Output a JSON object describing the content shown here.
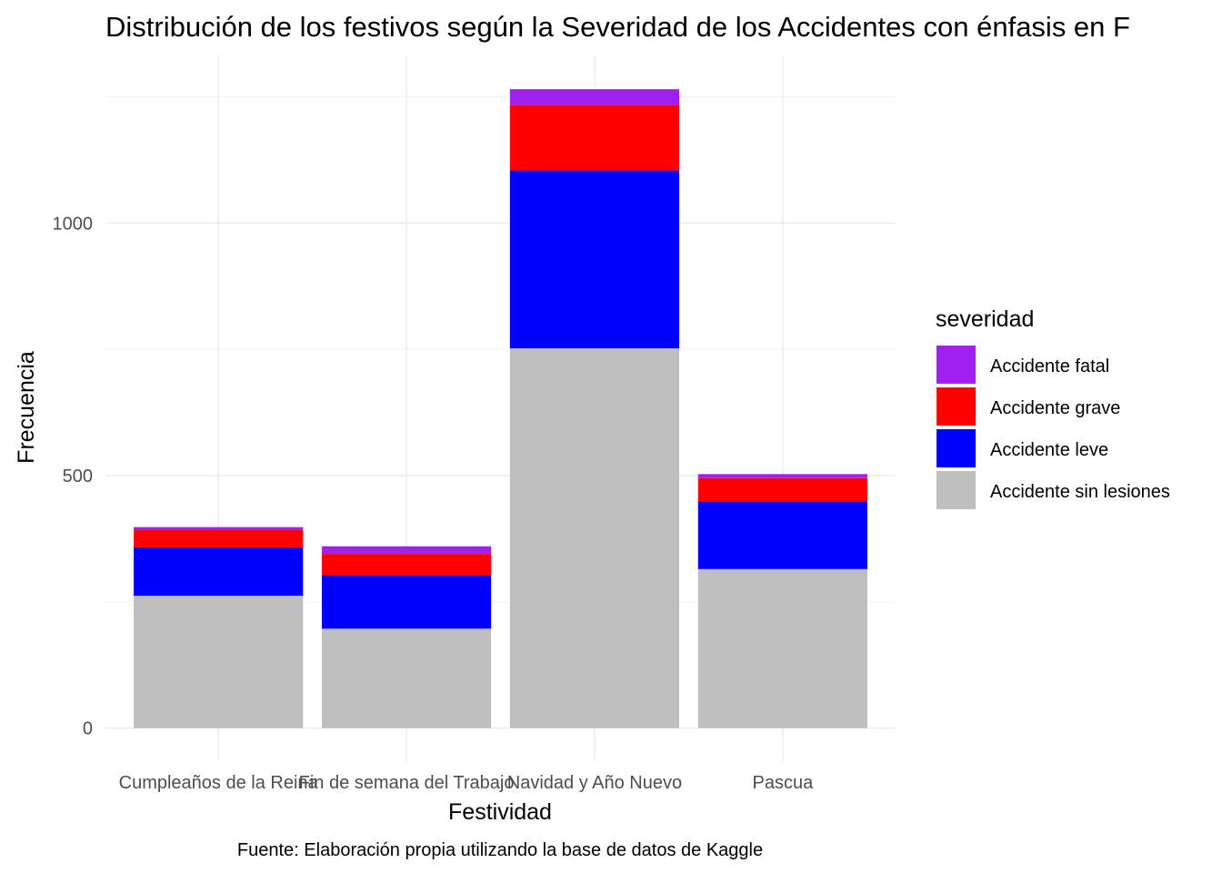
{
  "chart_data": {
    "type": "bar",
    "stacked": true,
    "title": "Distribución de los festivos según la Severidad de los Accidentes con énfasis en F",
    "xlabel": "Festividad",
    "ylabel": "Frecuencia",
    "caption": "Fuente: Elaboración propia utilizando la base de datos de Kaggle",
    "categories": [
      "Cumpleaños de la Reina",
      "Fin de semana del Trabajo",
      "Navidad y Año Nuevo",
      "Pascua"
    ],
    "yticks": [
      0,
      500,
      1000
    ],
    "ylim": [
      0,
      1300
    ],
    "grid": true,
    "legend": {
      "title": "severidad",
      "position": "right",
      "order": [
        "Accidente fatal",
        "Accidente grave",
        "Accidente leve",
        "Accidente sin lesiones"
      ]
    },
    "series": [
      {
        "name": "Accidente sin lesiones",
        "color": "#BEBEBE",
        "values": [
          262,
          197,
          752,
          315
        ]
      },
      {
        "name": "Accidente leve",
        "color": "#0000FF",
        "values": [
          96,
          106,
          352,
          134
        ]
      },
      {
        "name": "Accidente grave",
        "color": "#FF0000",
        "values": [
          34,
          42,
          130,
          46
        ]
      },
      {
        "name": "Accidente fatal",
        "color": "#A020F0",
        "values": [
          6,
          15,
          31,
          8
        ]
      }
    ]
  }
}
